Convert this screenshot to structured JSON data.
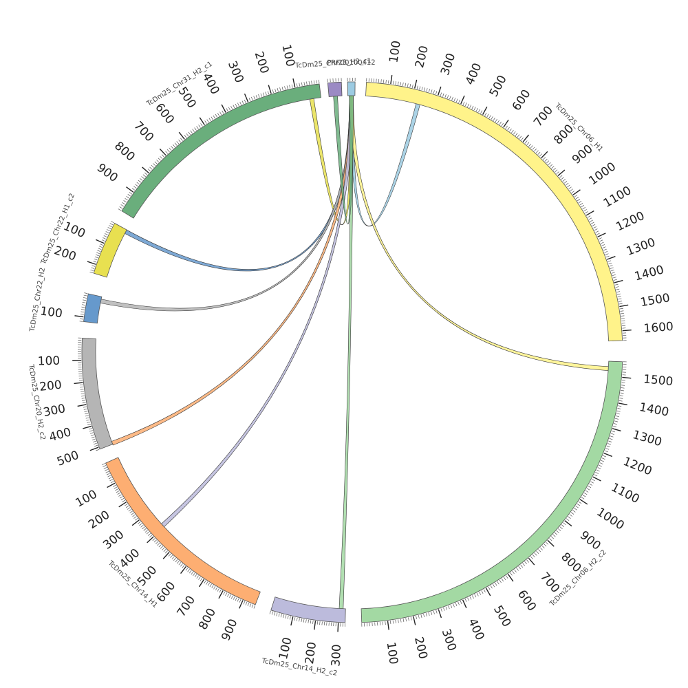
{
  "diagram": {
    "type": "circos",
    "segments": [
      {
        "id": "h1",
        "name": "TcDm25_Chr06_H1",
        "length": 1640,
        "color": "#fff38a",
        "tick_labels": [
          "100",
          "200",
          "300",
          "400",
          "500",
          "600",
          "700",
          "800",
          "900",
          "1000",
          "1100",
          "1200",
          "1300",
          "1400",
          "1500",
          "1600"
        ]
      },
      {
        "id": "h2c2",
        "name": "TcDm25_Chr06_H2_c2",
        "length": 1560,
        "color": "#a3d9a3",
        "tick_labels": [
          "100",
          "200",
          "300",
          "400",
          "500",
          "600",
          "700",
          "800",
          "900",
          "1000",
          "1100",
          "1200",
          "1300",
          "1400",
          "1500"
        ]
      },
      {
        "id": "chr14h2",
        "name": "TcDm25_Chr14_H2_c2",
        "length": 330,
        "color": "#bcbbdc",
        "tick_labels": [
          "100",
          "200",
          "300"
        ]
      },
      {
        "id": "chr14h1",
        "name": "TcDm25_Chr14_H1",
        "length": 960,
        "color": "#fdae72",
        "tick_labels": [
          "100",
          "200",
          "300",
          "400",
          "500",
          "600",
          "700",
          "800",
          "900"
        ]
      },
      {
        "id": "chr20",
        "name": "TcDm25_Chr20_H2_c2",
        "length": 510,
        "color": "#b5b5b5",
        "tick_labels": [
          "100",
          "200",
          "300",
          "400",
          "500"
        ]
      },
      {
        "id": "chr22h2",
        "name": "TcDm25_Chr22_H2",
        "length": 120,
        "color": "#6699cc",
        "tick_labels": [
          "100"
        ]
      },
      {
        "id": "chr22h1",
        "name": "TcDm25_Chr22_H1_c2",
        "length": 240,
        "color": "#e8e050",
        "tick_labels": [
          "100",
          "200"
        ]
      },
      {
        "id": "chr31",
        "name": "TcDm25_Chr31_H2_c1",
        "length": 990,
        "color": "#6aae7c",
        "tick_labels": [
          "100",
          "200",
          "300",
          "400",
          "500",
          "600",
          "700",
          "800",
          "900"
        ]
      },
      {
        "id": "chr28",
        "name": "TcDm25_Chr28_H2_c1",
        "length": 50,
        "color": "#9b8ac4",
        "tick_labels": []
      },
      {
        "id": "prfc",
        "name": "PRFC0100412",
        "length": 30,
        "color": "#9ccbe2",
        "tick_labels": []
      }
    ],
    "links": [
      {
        "from": "prfc",
        "to": "h1",
        "to_pos": 230,
        "color": "#9ccbe2"
      },
      {
        "from": "prfc",
        "to": "chr31",
        "to_pos": 40,
        "color": "#e8e050"
      },
      {
        "from": "prfc",
        "to": "chr22h1",
        "to_pos": 10,
        "color": "#6699cc"
      },
      {
        "from": "prfc",
        "to": "chr22h2",
        "to_pos": 20,
        "color": "#b5b5b5"
      },
      {
        "from": "prfc",
        "to": "chr20",
        "to_pos": 505,
        "color": "#fdae72"
      },
      {
        "from": "prfc",
        "to": "chr14h1",
        "to_pos": 390,
        "color": "#bcbbdc"
      },
      {
        "from": "prfc",
        "to": "chr14h2",
        "to_pos": 310,
        "color": "#a3d9a3"
      },
      {
        "from": "prfc",
        "to": "h2c2",
        "to_pos": 1530,
        "color": "#fff38a"
      },
      {
        "from": "chr28",
        "to": "prfc",
        "to_pos": 15,
        "color": "#6aae7c"
      }
    ]
  }
}
